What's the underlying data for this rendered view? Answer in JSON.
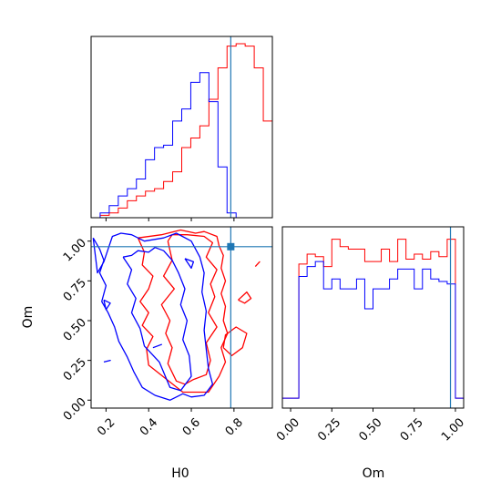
{
  "figure": {
    "type": "corner-plot",
    "parameters": [
      "H0",
      "Om"
    ]
  },
  "colors": {
    "series_a": "#ff0000",
    "series_b": "#0000ff",
    "truth": "#1f77b4",
    "frame": "#000000"
  },
  "chart_data": [
    {
      "type": "histogram",
      "panel": "H0-marginal",
      "xlim": [
        0.13,
        0.98
      ],
      "bins": [
        0.13,
        0.1725,
        0.215,
        0.2575,
        0.3,
        0.3425,
        0.385,
        0.4275,
        0.47,
        0.5125,
        0.555,
        0.5975,
        0.64,
        0.6825,
        0.725,
        0.7675,
        0.81,
        0.8525,
        0.895,
        0.9375,
        0.98
      ],
      "series": [
        {
          "values": [
            0,
            0.01,
            0.02,
            0.04,
            0.07,
            0.09,
            0.11,
            0.12,
            0.15,
            0.19,
            0.29,
            0.33,
            0.38,
            0.49,
            0.62,
            0.71,
            0.72,
            0.71,
            0.62,
            0.4
          ]
        },
        {
          "values": [
            0,
            0.02,
            0.05,
            0.09,
            0.12,
            0.16,
            0.24,
            0.29,
            0.3,
            0.4,
            0.45,
            0.56,
            0.6,
            0.48,
            0.21,
            0.02,
            0,
            0,
            0,
            0
          ]
        }
      ],
      "truth": 0.785,
      "xticks": [
        "0.2",
        "0.4",
        "0.6",
        "0.8"
      ],
      "yticks": [
        "",
        "",
        "",
        ""
      ]
    },
    {
      "type": "histogram",
      "panel": "Om-marginal",
      "xlim": [
        -0.05,
        1.05
      ],
      "bins": [
        -0.05,
        0.0,
        0.05,
        0.1,
        0.15,
        0.2,
        0.25,
        0.3,
        0.35,
        0.4,
        0.45,
        0.5,
        0.55,
        0.6,
        0.65,
        0.7,
        0.75,
        0.8,
        0.85,
        0.9,
        0.95,
        1.0,
        1.05
      ],
      "series": [
        {
          "values": [
            0.04,
            0.04,
            0.58,
            0.62,
            0.61,
            0.57,
            0.68,
            0.65,
            0.64,
            0.64,
            0.59,
            0.59,
            0.64,
            0.59,
            0.68,
            0.6,
            0.62,
            0.6,
            0.63,
            0.61,
            0.68,
            0.04
          ]
        },
        {
          "values": [
            0.04,
            0.04,
            0.53,
            0.57,
            0.59,
            0.48,
            0.52,
            0.48,
            0.48,
            0.52,
            0.4,
            0.48,
            0.48,
            0.52,
            0.56,
            0.56,
            0.48,
            0.56,
            0.52,
            0.51,
            0.5,
            0.04
          ]
        }
      ],
      "truth": 0.97,
      "xlabel": "Om",
      "xticks": [
        "0.00",
        "0.25",
        "0.50",
        "0.75",
        "1.00"
      ]
    },
    {
      "type": "contour",
      "panel": "H0-Om-joint",
      "xlim": [
        0.13,
        0.98
      ],
      "ylim": [
        -0.05,
        1.09
      ],
      "xlabel": "H0",
      "ylabel": "Om",
      "xticks": [
        "0.2",
        "0.4",
        "0.6",
        "0.8"
      ],
      "yticks": [
        "0.00",
        "0.25",
        "0.50",
        "0.75",
        "1.00"
      ],
      "truth": {
        "H0": 0.785,
        "Om": 0.965
      },
      "series": [
        {
          "levels": [
            {
              "x": [
                0.35,
                0.38,
                0.37,
                0.42,
                0.4,
                0.36,
                0.4,
                0.37,
                0.42,
                0.39,
                0.4,
                0.56,
                0.68,
                0.73,
                0.76,
                0.74,
                0.77,
                0.75,
                0.76,
                0.74,
                0.76,
                0.74,
                0.75,
                0.73,
                0.72,
                0.66,
                0.62,
                0.55,
                0.46,
                0.35
              ],
              "y": [
                1.02,
                0.93,
                0.85,
                0.78,
                0.7,
                0.62,
                0.55,
                0.47,
                0.4,
                0.32,
                0.22,
                0.05,
                0.05,
                0.15,
                0.24,
                0.33,
                0.42,
                0.5,
                0.59,
                0.67,
                0.75,
                0.83,
                0.91,
                0.97,
                1.03,
                1.06,
                1.05,
                1.07,
                1.04,
                1.02
              ]
            },
            {
              "x": [
                0.49,
                0.51,
                0.47,
                0.52,
                0.46,
                0.5,
                0.48,
                0.51,
                0.49,
                0.53,
                0.57,
                0.61,
                0.67,
                0.69,
                0.67,
                0.72,
                0.68,
                0.71,
                0.69,
                0.72,
                0.67,
                0.7,
                0.66,
                0.58,
                0.51,
                0.49
              ],
              "y": [
                1.0,
                0.88,
                0.78,
                0.7,
                0.6,
                0.5,
                0.42,
                0.33,
                0.23,
                0.12,
                0.1,
                0.13,
                0.16,
                0.25,
                0.36,
                0.46,
                0.55,
                0.65,
                0.73,
                0.82,
                0.9,
                0.99,
                1.03,
                1.04,
                1.04,
                1.0
              ]
            },
            {
              "x": [
                0.75,
                0.79,
                0.84,
                0.86,
                0.81,
                0.76,
                0.75
              ],
              "y": [
                0.33,
                0.28,
                0.33,
                0.42,
                0.46,
                0.41,
                0.33
              ]
            },
            {
              "x": [
                0.82,
                0.85,
                0.88,
                0.86,
                0.82
              ],
              "y": [
                0.63,
                0.61,
                0.64,
                0.68,
                0.63
              ]
            },
            {
              "x": [
                0.9,
                0.92,
                0.9
              ],
              "y": [
                0.84,
                0.87,
                0.84
              ]
            }
          ]
        },
        {
          "levels": [
            {
              "x": [
                0.14,
                0.17,
                0.19,
                0.17,
                0.2,
                0.18,
                0.21,
                0.24,
                0.26,
                0.3,
                0.33,
                0.37,
                0.43,
                0.5,
                0.56,
                0.6,
                0.66,
                0.7,
                0.68,
                0.67,
                0.66,
                0.67,
                0.65,
                0.66,
                0.64,
                0.6,
                0.53,
                0.47,
                0.38,
                0.32,
                0.27,
                0.23,
                0.21,
                0.19,
                0.16,
                0.14
              ],
              "y": [
                1.02,
                0.95,
                0.88,
                0.8,
                0.72,
                0.62,
                0.55,
                0.46,
                0.37,
                0.27,
                0.18,
                0.08,
                0.03,
                0.0,
                0.04,
                0.02,
                0.03,
                0.1,
                0.2,
                0.32,
                0.44,
                0.56,
                0.68,
                0.8,
                0.9,
                1.0,
                1.05,
                1.02,
                1.0,
                1.04,
                1.05,
                1.03,
                0.95,
                0.87,
                0.8,
                1.02
              ]
            },
            {
              "x": [
                0.28,
                0.32,
                0.3,
                0.34,
                0.32,
                0.36,
                0.38,
                0.45,
                0.5,
                0.55,
                0.6,
                0.59,
                0.56,
                0.58,
                0.55,
                0.57,
                0.54,
                0.51,
                0.47,
                0.43,
                0.4,
                0.35,
                0.32,
                0.28
              ],
              "y": [
                0.9,
                0.82,
                0.73,
                0.64,
                0.55,
                0.45,
                0.34,
                0.24,
                0.08,
                0.06,
                0.15,
                0.28,
                0.38,
                0.5,
                0.6,
                0.7,
                0.8,
                0.88,
                0.94,
                0.96,
                0.93,
                0.94,
                0.91,
                0.9
              ]
            },
            {
              "x": [
                0.19,
                0.22,
                0.2,
                0.19
              ],
              "y": [
                0.63,
                0.61,
                0.57,
                0.63
              ]
            },
            {
              "x": [
                0.19,
                0.22,
                0.19
              ],
              "y": [
                0.24,
                0.25,
                0.24
              ]
            },
            {
              "x": [
                0.42,
                0.46,
                0.42
              ],
              "y": [
                0.33,
                0.35,
                0.33
              ]
            },
            {
              "x": [
                0.57,
                0.61,
                0.6,
                0.57
              ],
              "y": [
                0.89,
                0.87,
                0.83,
                0.89
              ]
            }
          ]
        }
      ]
    }
  ]
}
